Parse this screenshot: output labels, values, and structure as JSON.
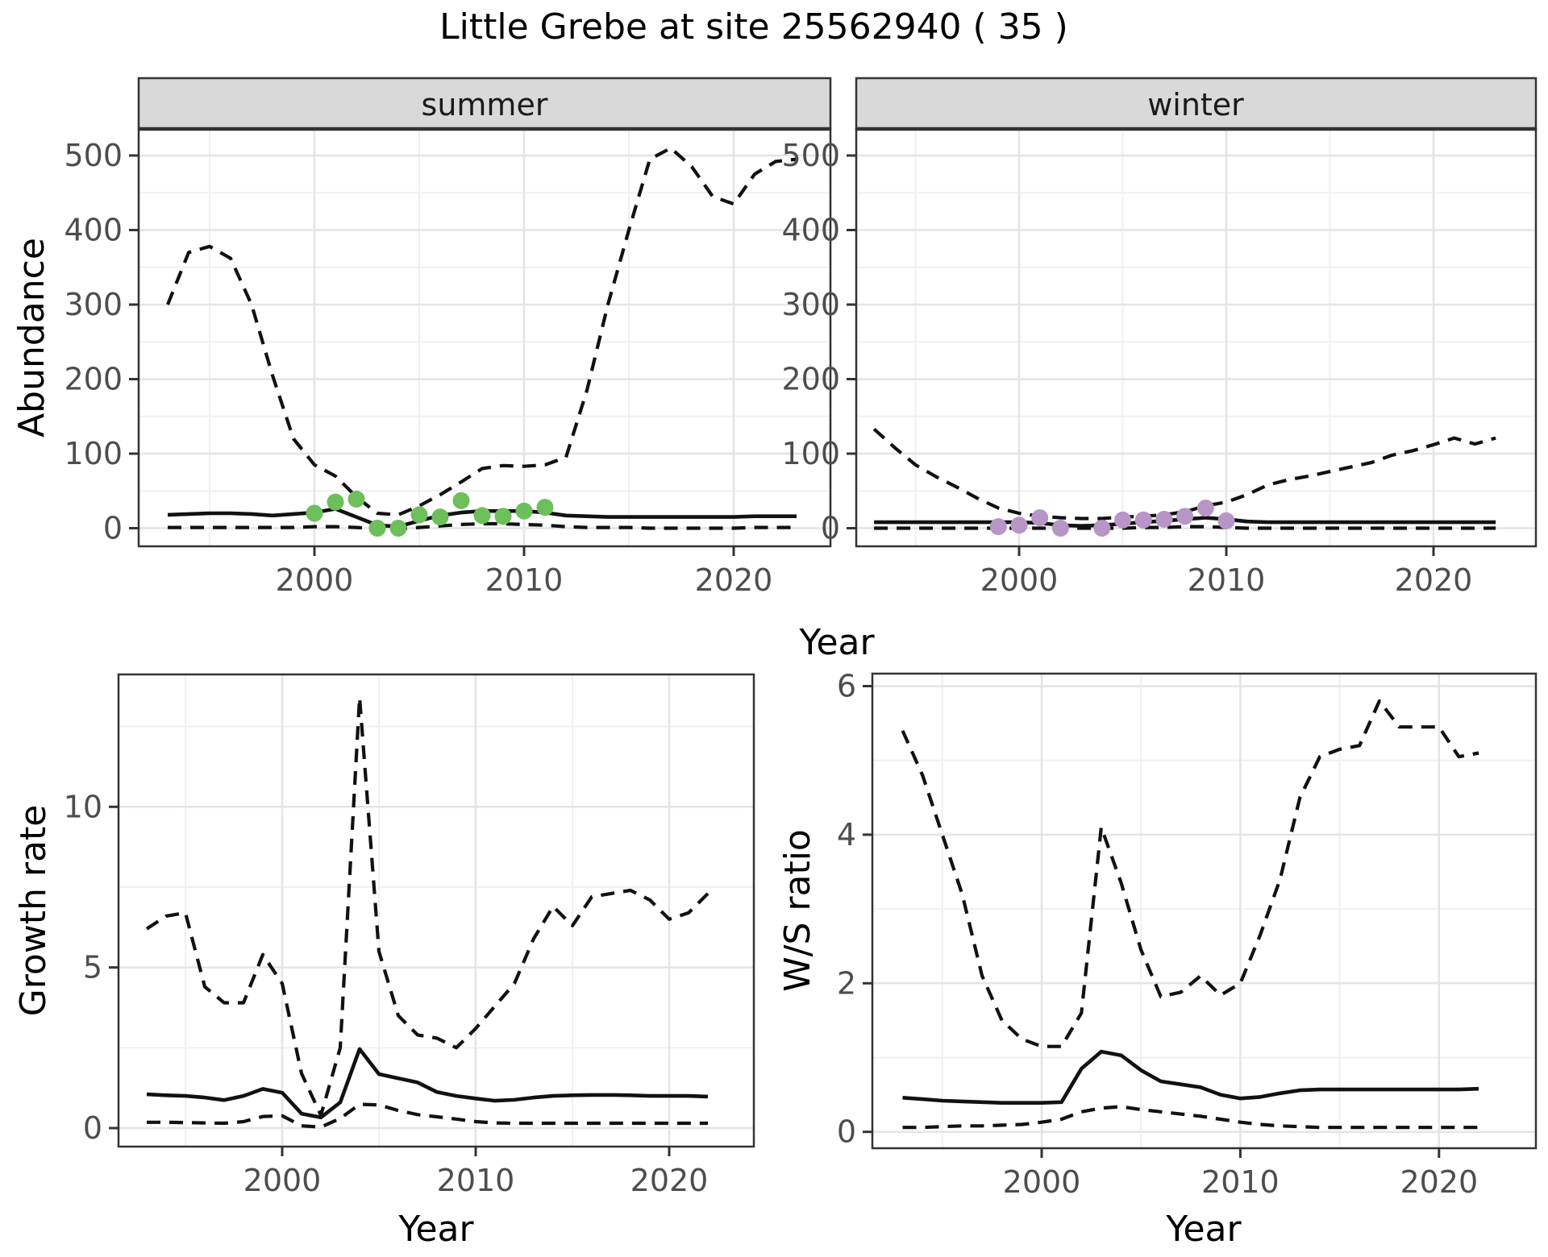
{
  "figure": {
    "title": "Little Grebe at site 25562940 ( 35 )"
  },
  "colors": {
    "summer_point": "#6cbf5a",
    "winter_point": "#b795c6",
    "line": "#111111",
    "gridline_major": "#e4e4e4",
    "gridline_minor": "#f0f0f0",
    "strip_background": "#d9d9d9",
    "tick_text": "#4d4d4d"
  },
  "chart_data": [
    {
      "type": "line",
      "key": "summer-abundance",
      "facet_label": "summer",
      "ylabel": "Abundance",
      "xlabel": "Year",
      "xticks": [
        2000,
        2010,
        2020
      ],
      "yticks": [
        0,
        100,
        200,
        300,
        400,
        500
      ],
      "xlim": [
        1992.6,
        2024.6
      ],
      "ylim": [
        -19,
        536
      ],
      "grid": true,
      "x": [
        1993,
        1994,
        1995,
        1996,
        1997,
        1998,
        1999,
        2000,
        2001,
        2002,
        2003,
        2004,
        2005,
        2006,
        2007,
        2008,
        2009,
        2010,
        2011,
        2012,
        2013,
        2014,
        2015,
        2016,
        2017,
        2018,
        2019,
        2020,
        2021,
        2022,
        2023
      ],
      "series": [
        {
          "name": "upper_ci",
          "style": "dashed",
          "values": [
            300,
            370,
            378,
            362,
            300,
            205,
            120,
            85,
            70,
            42,
            20,
            18,
            30,
            45,
            62,
            80,
            84,
            83,
            85,
            95,
            185,
            300,
            400,
            495,
            510,
            485,
            445,
            435,
            475,
            492,
            495
          ]
        },
        {
          "name": "estimate",
          "style": "solid",
          "values": [
            18,
            19,
            20,
            20,
            19,
            17,
            19,
            21,
            26,
            15,
            4,
            2,
            10,
            17,
            21,
            23,
            23,
            23,
            21,
            17,
            16,
            15,
            15,
            15,
            15,
            15,
            15,
            15,
            16,
            16,
            16
          ]
        },
        {
          "name": "lower_ci",
          "style": "dashed",
          "values": [
            1,
            1,
            1,
            1,
            1,
            1,
            1,
            2,
            2,
            1,
            -1,
            -1,
            1,
            3,
            5,
            6,
            6,
            5,
            4,
            2,
            1,
            1,
            1,
            0,
            0,
            0,
            0,
            0,
            1,
            1,
            1
          ]
        }
      ],
      "points": {
        "name": "observed-counts-summer",
        "color": "#6cbf5a",
        "x": [
          2000,
          2001,
          2002,
          2003,
          2004,
          2005,
          2006,
          2007,
          2008,
          2009,
          2010,
          2011
        ],
        "y": [
          20,
          35,
          39,
          0,
          0,
          18,
          15,
          37,
          17,
          16,
          23,
          28
        ]
      }
    },
    {
      "type": "line",
      "key": "winter-abundance",
      "facet_label": "winter",
      "ylabel": "Abundance",
      "xlabel": "Year",
      "xticks": [
        2000,
        2010,
        2020
      ],
      "yticks": [
        0,
        100,
        200,
        300,
        400,
        500
      ],
      "xlim": [
        1992.6,
        2024.6
      ],
      "ylim": [
        -19,
        536
      ],
      "grid": true,
      "x": [
        1993,
        1994,
        1995,
        1996,
        1997,
        1998,
        1999,
        2000,
        2001,
        2002,
        2003,
        2004,
        2005,
        2006,
        2007,
        2008,
        2009,
        2010,
        2011,
        2012,
        2013,
        2014,
        2015,
        2016,
        2017,
        2018,
        2019,
        2020,
        2021,
        2022,
        2023
      ],
      "series": [
        {
          "name": "upper_ci",
          "style": "dashed",
          "values": [
            133,
            108,
            85,
            69,
            55,
            40,
            27,
            20,
            16,
            14,
            13,
            13,
            15,
            16,
            18,
            22,
            30,
            35,
            45,
            58,
            65,
            70,
            76,
            82,
            88,
            98,
            104,
            112,
            121,
            113,
            121
          ]
        },
        {
          "name": "estimate",
          "style": "solid",
          "values": [
            8,
            8,
            8,
            8,
            8,
            8,
            8,
            8,
            7,
            4,
            3,
            4,
            6,
            8,
            10,
            12,
            14,
            12,
            9,
            8,
            8,
            8,
            8,
            8,
            8,
            8,
            8,
            8,
            8,
            8,
            8
          ]
        },
        {
          "name": "lower_ci",
          "style": "dashed",
          "values": [
            0,
            0,
            0,
            0,
            0,
            0,
            0,
            0,
            0,
            0,
            0,
            0,
            0,
            1,
            1,
            2,
            2,
            1,
            0,
            0,
            0,
            0,
            0,
            0,
            0,
            0,
            0,
            0,
            0,
            0,
            0
          ]
        }
      ],
      "points": {
        "name": "observed-counts-winter",
        "color": "#b795c6",
        "x": [
          1999,
          2000,
          2001,
          2002,
          2004,
          2005,
          2006,
          2007,
          2008,
          2009,
          2010
        ],
        "y": [
          2,
          4,
          14,
          0,
          0,
          11,
          11,
          12,
          16,
          27,
          10
        ]
      }
    },
    {
      "type": "line",
      "key": "growth-rate",
      "facet_label": "",
      "ylabel": "Growth rate",
      "xlabel": "Year",
      "xticks": [
        2000,
        2010,
        2020
      ],
      "yticks": [
        0,
        5,
        10
      ],
      "xlim": [
        1991.5,
        2024.4
      ],
      "ylim": [
        -0.6,
        14.1
      ],
      "grid": true,
      "x": [
        1993,
        1994,
        1995,
        1996,
        1997,
        1998,
        1999,
        2000,
        2001,
        2002,
        2003,
        2004,
        2005,
        2006,
        2007,
        2008,
        2009,
        2010,
        2011,
        2012,
        2013,
        2014,
        2015,
        2016,
        2017,
        2018,
        2019,
        2020,
        2021,
        2022
      ],
      "series": [
        {
          "name": "upper_ci",
          "style": "dashed",
          "values": [
            6.2,
            6.6,
            6.7,
            4.4,
            3.9,
            3.9,
            5.4,
            4.5,
            1.7,
            0.4,
            2.5,
            13.4,
            5.5,
            3.5,
            2.9,
            2.8,
            2.5,
            3.1,
            3.8,
            4.5,
            5.9,
            6.9,
            6.3,
            7.2,
            7.3,
            7.4,
            7.1,
            6.5,
            6.7,
            7.3
          ]
        },
        {
          "name": "estimate",
          "style": "solid",
          "values": [
            1.05,
            1.02,
            1.0,
            0.95,
            0.87,
            1.0,
            1.22,
            1.1,
            0.45,
            0.33,
            0.8,
            2.46,
            1.68,
            1.55,
            1.42,
            1.12,
            1.0,
            0.92,
            0.85,
            0.88,
            0.95,
            1.0,
            1.02,
            1.03,
            1.03,
            1.02,
            1.0,
            1.0,
            1.0,
            0.98
          ]
        },
        {
          "name": "lower_ci",
          "style": "dashed",
          "values": [
            0.18,
            0.18,
            0.17,
            0.16,
            0.15,
            0.2,
            0.36,
            0.38,
            0.07,
            0.03,
            0.3,
            0.74,
            0.72,
            0.55,
            0.42,
            0.35,
            0.28,
            0.2,
            0.16,
            0.15,
            0.15,
            0.15,
            0.15,
            0.15,
            0.15,
            0.15,
            0.15,
            0.15,
            0.15,
            0.15
          ]
        }
      ]
    },
    {
      "type": "line",
      "key": "ws-ratio",
      "facet_label": "",
      "ylabel": "W/S ratio",
      "xlabel": "Year",
      "xticks": [
        2000,
        2010,
        2020
      ],
      "yticks": [
        0,
        2,
        4,
        6
      ],
      "xlim": [
        1991.5,
        2024.9
      ],
      "ylim": [
        -0.22,
        6.17
      ],
      "grid": true,
      "x": [
        1993,
        1994,
        1995,
        1996,
        1997,
        1998,
        1999,
        2000,
        2001,
        2002,
        2003,
        2004,
        2005,
        2006,
        2007,
        2008,
        2009,
        2010,
        2011,
        2012,
        2013,
        2014,
        2015,
        2016,
        2017,
        2018,
        2019,
        2020,
        2021,
        2022
      ],
      "series": [
        {
          "name": "upper_ci",
          "style": "dashed",
          "values": [
            5.4,
            4.8,
            4.0,
            3.2,
            2.1,
            1.5,
            1.25,
            1.15,
            1.15,
            1.6,
            4.1,
            3.35,
            2.45,
            1.82,
            1.88,
            2.1,
            1.84,
            2.0,
            2.65,
            3.4,
            4.5,
            5.05,
            5.15,
            5.2,
            5.8,
            5.45,
            5.45,
            5.45,
            5.05,
            5.1
          ]
        },
        {
          "name": "estimate",
          "style": "solid",
          "values": [
            0.46,
            0.44,
            0.42,
            0.41,
            0.4,
            0.39,
            0.39,
            0.39,
            0.4,
            0.85,
            1.08,
            1.03,
            0.83,
            0.68,
            0.64,
            0.6,
            0.5,
            0.45,
            0.47,
            0.52,
            0.56,
            0.57,
            0.57,
            0.57,
            0.57,
            0.57,
            0.57,
            0.57,
            0.57,
            0.58
          ]
        },
        {
          "name": "lower_ci",
          "style": "dashed",
          "values": [
            0.06,
            0.06,
            0.07,
            0.08,
            0.08,
            0.09,
            0.1,
            0.13,
            0.17,
            0.27,
            0.32,
            0.34,
            0.3,
            0.27,
            0.24,
            0.21,
            0.17,
            0.13,
            0.1,
            0.08,
            0.07,
            0.06,
            0.06,
            0.06,
            0.06,
            0.06,
            0.06,
            0.06,
            0.06,
            0.06
          ]
        }
      ]
    }
  ]
}
